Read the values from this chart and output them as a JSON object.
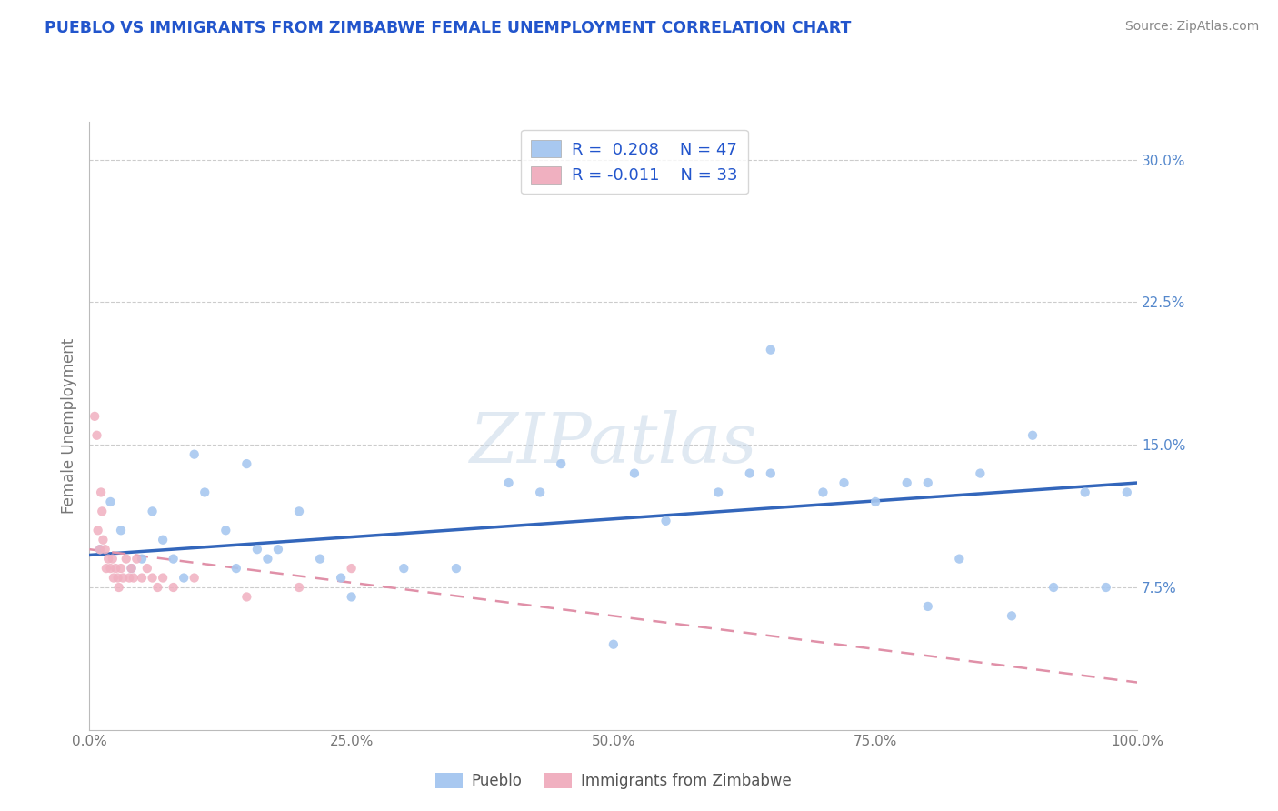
{
  "title": "PUEBLO VS IMMIGRANTS FROM ZIMBABWE FEMALE UNEMPLOYMENT CORRELATION CHART",
  "source_text": "Source: ZipAtlas.com",
  "ylabel": "Female Unemployment",
  "watermark": "ZIPatlas",
  "xlim": [
    0.0,
    100.0
  ],
  "ylim": [
    0.0,
    32.0
  ],
  "yticks": [
    0.0,
    7.5,
    15.0,
    22.5,
    30.0
  ],
  "xticks": [
    0.0,
    25.0,
    50.0,
    75.0,
    100.0
  ],
  "xtick_labels": [
    "0.0%",
    "25.0%",
    "50.0%",
    "75.0%",
    "100.0%"
  ],
  "ytick_labels": [
    "",
    "7.5%",
    "15.0%",
    "22.5%",
    "30.0%"
  ],
  "series1_name": "Pueblo",
  "series1_color": "#a8c8f0",
  "series1_R": 0.208,
  "series1_N": 47,
  "series1_x": [
    1.0,
    2.0,
    3.0,
    4.0,
    5.0,
    6.0,
    7.0,
    8.0,
    9.0,
    10.0,
    11.0,
    13.0,
    14.0,
    16.0,
    17.0,
    18.0,
    20.0,
    22.0,
    24.0,
    25.0,
    30.0,
    35.0,
    40.0,
    43.0,
    50.0,
    52.0,
    55.0,
    60.0,
    63.0,
    65.0,
    70.0,
    72.0,
    75.0,
    78.0,
    80.0,
    83.0,
    85.0,
    88.0,
    90.0,
    92.0,
    95.0,
    97.0,
    99.0,
    65.0,
    80.0,
    15.0,
    45.0
  ],
  "series1_y": [
    9.5,
    12.0,
    10.5,
    8.5,
    9.0,
    11.5,
    10.0,
    9.0,
    8.0,
    14.5,
    12.5,
    10.5,
    8.5,
    9.5,
    9.0,
    9.5,
    11.5,
    9.0,
    8.0,
    7.0,
    8.5,
    8.5,
    13.0,
    12.5,
    4.5,
    13.5,
    11.0,
    12.5,
    13.5,
    13.5,
    12.5,
    13.0,
    12.0,
    13.0,
    13.0,
    9.0,
    13.5,
    6.0,
    15.5,
    7.5,
    12.5,
    7.5,
    12.5,
    20.0,
    6.5,
    14.0,
    14.0
  ],
  "series2_name": "Immigrants from Zimbabwe",
  "series2_color": "#f0b0c0",
  "series2_R": -0.011,
  "series2_N": 33,
  "series2_x": [
    0.5,
    0.7,
    0.8,
    1.0,
    1.1,
    1.2,
    1.3,
    1.5,
    1.6,
    1.8,
    2.0,
    2.2,
    2.3,
    2.5,
    2.7,
    2.8,
    3.0,
    3.2,
    3.5,
    3.8,
    4.0,
    4.2,
    4.5,
    5.0,
    5.5,
    6.0,
    6.5,
    7.0,
    8.0,
    10.0,
    15.0,
    20.0,
    25.0
  ],
  "series2_y": [
    16.5,
    15.5,
    10.5,
    9.5,
    12.5,
    11.5,
    10.0,
    9.5,
    8.5,
    9.0,
    8.5,
    9.0,
    8.0,
    8.5,
    8.0,
    7.5,
    8.5,
    8.0,
    9.0,
    8.0,
    8.5,
    8.0,
    9.0,
    8.0,
    8.5,
    8.0,
    7.5,
    8.0,
    7.5,
    8.0,
    7.0,
    7.5,
    8.5
  ],
  "trend1_color": "#3366bb",
  "trend2_color": "#e090a8",
  "trend1_x0": 0.0,
  "trend1_y0": 9.2,
  "trend1_x1": 100.0,
  "trend1_y1": 13.0,
  "trend2_x0": 0.0,
  "trend2_y0": 9.5,
  "trend2_x1": 100.0,
  "trend2_y1": 2.5,
  "legend_color": "#2255cc",
  "background_color": "#ffffff",
  "grid_color": "#cccccc",
  "title_color": "#2255cc",
  "title_fontsize": 12.5,
  "source_fontsize": 10,
  "ylabel_fontsize": 12,
  "tick_fontsize": 11,
  "legend_fontsize": 13,
  "watermark_fontsize": 55
}
